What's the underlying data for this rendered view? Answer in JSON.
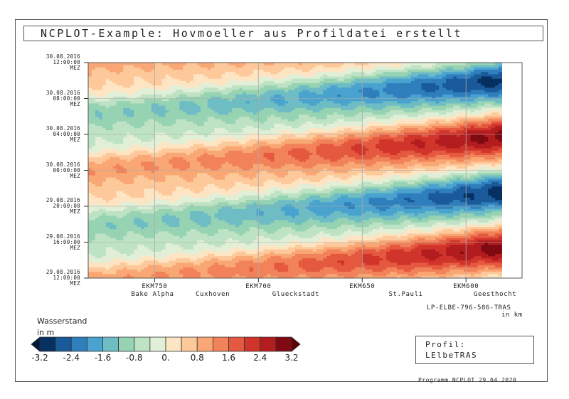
{
  "title": "NCPLOT-Example: Hovmoeller aus Profildatei erstellt",
  "chart_data": {
    "type": "heatmap",
    "x_axis": {
      "range_km": [
        782,
        573
      ],
      "ticks": [
        {
          "km": 750,
          "label": "EKM750"
        },
        {
          "km": 700,
          "label": "EKM700"
        },
        {
          "km": 650,
          "label": "EKM650"
        },
        {
          "km": 600,
          "label": "EKM600"
        }
      ],
      "places": [
        {
          "km": 751,
          "label": "Bake Alpha"
        },
        {
          "km": 722,
          "label": "Cuxhoven"
        },
        {
          "km": 682,
          "label": "Glueckstadt"
        },
        {
          "km": 629,
          "label": "St.Pauli"
        },
        {
          "km": 586,
          "label": "Geesthocht"
        }
      ]
    },
    "y_axis": {
      "range_hours": [
        0,
        24
      ],
      "ticks": [
        {
          "date": "29.08.2016",
          "time": "12:00:00",
          "zone": "MEZ"
        },
        {
          "date": "29.08.2016",
          "time": "16:00:00",
          "zone": "MEZ"
        },
        {
          "date": "29.08.2016",
          "time": "20:00:00",
          "zone": "MEZ"
        },
        {
          "date": "30.08.2016",
          "time": "00:00:00",
          "zone": "MEZ"
        },
        {
          "date": "30.08.2016",
          "time": "04:00:00",
          "zone": "MEZ"
        },
        {
          "date": "30.08.2016",
          "time": "08:00:00",
          "zone": "MEZ"
        },
        {
          "date": "30.08.2016",
          "time": "12:00:00",
          "zone": "MEZ"
        }
      ]
    },
    "grid": true,
    "colorbar": {
      "title": "Wasserstand",
      "unit": "in m",
      "levels": [
        -3.2,
        -2.8,
        -2.4,
        -2.0,
        -1.6,
        -1.2,
        -0.8,
        -0.4,
        0.0,
        0.4,
        0.8,
        1.2,
        1.6,
        2.0,
        2.4,
        2.8,
        3.2
      ],
      "tick_labels": [
        "-3.2",
        "-2.4",
        "-1.6",
        "-0.8",
        "0.",
        "0.8",
        "1.6",
        "2.4",
        "3.2"
      ],
      "colors": [
        "#053061",
        "#1a5a9a",
        "#2f7fbc",
        "#4aa3cf",
        "#6ebcc4",
        "#96d3b3",
        "#bee2c4",
        "#e0efd6",
        "#fde5c4",
        "#fdc99b",
        "#f9a774",
        "#f2825a",
        "#e4593f",
        "#d0342a",
        "#b31d1f",
        "#7f0a12"
      ],
      "under_color": "#021a3a",
      "over_color": "#5e0008"
    },
    "source_label": "LP-ELBE-796-586-TRAS",
    "source_unit": "in km",
    "profile_title": "Profil:",
    "profile_name": "LElbeTRAS",
    "footer": "Programm NCPLOT 29.04.2020"
  }
}
